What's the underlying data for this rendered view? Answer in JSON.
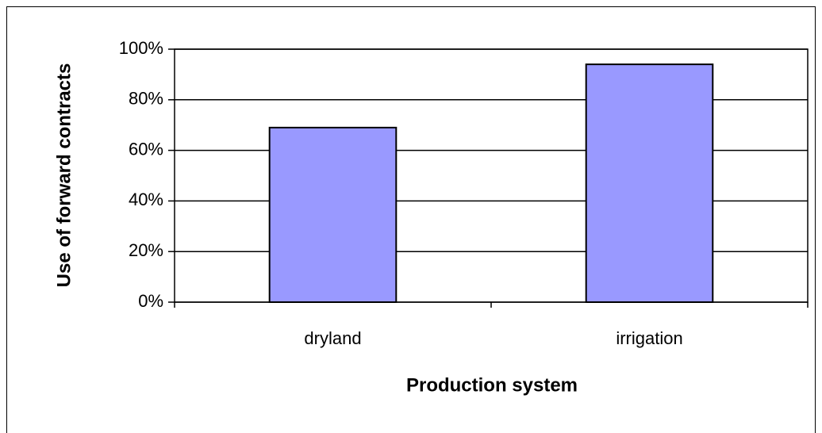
{
  "chart_data": {
    "type": "bar",
    "categories": [
      "dryland",
      "irrigation"
    ],
    "values": [
      69,
      94
    ],
    "color": "#9999ff",
    "xlabel": "Production system",
    "ylabel": "Use of forward contracts",
    "ylim": [
      0,
      100
    ],
    "yticks": [
      {
        "value": 0,
        "label": "0%"
      },
      {
        "value": 20,
        "label": "20%"
      },
      {
        "value": 40,
        "label": "40%"
      },
      {
        "value": 60,
        "label": "60%"
      },
      {
        "value": 80,
        "label": "80%"
      },
      {
        "value": 100,
        "label": "100%"
      }
    ],
    "grid": true
  }
}
